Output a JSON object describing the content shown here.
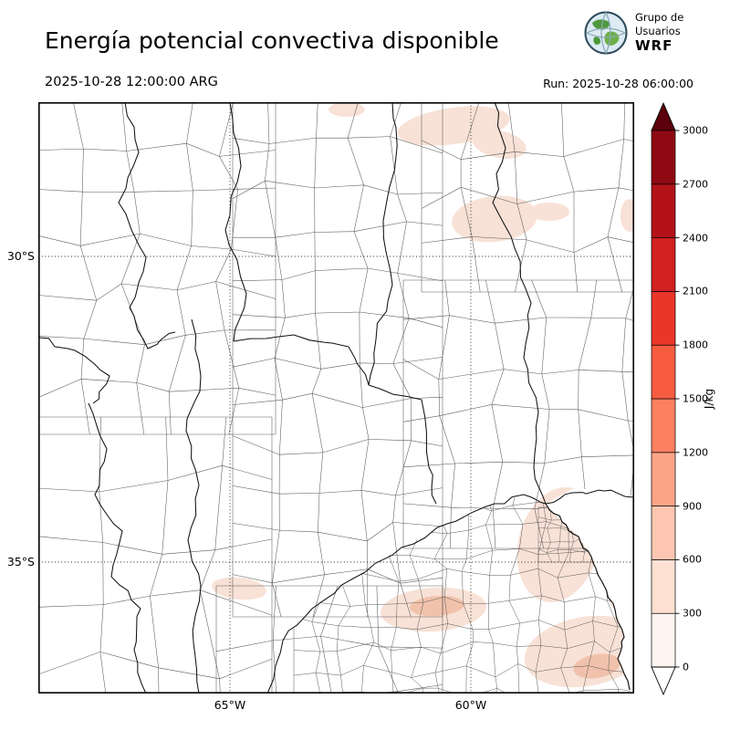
{
  "header": {
    "title": "Energía potencial convectiva disponible",
    "valid_time": "2025-10-28 12:00:00 ARG",
    "run_label": "Run: 2025-10-28 06:00:00"
  },
  "logo": {
    "line1": "Grupo de",
    "line2": "Usuarios",
    "line3": "WRF"
  },
  "map": {
    "lat_labels": [
      {
        "label": "30°S"
      },
      {
        "label": "35°S"
      }
    ],
    "lon_labels": [
      {
        "label": "65°W"
      },
      {
        "label": "60°W"
      }
    ],
    "patch_color": "#f8e1d6",
    "patch_core_color": "#f1c2ab",
    "department_color": "#5a5a5a",
    "boundary_color": "#111111",
    "grid_color": "#222222",
    "frame_color": "#000000"
  },
  "colorbar": {
    "unit": "J/kg",
    "tick_values": [
      "0",
      "300",
      "600",
      "900",
      "1200",
      "1500",
      "1800",
      "2100",
      "2400",
      "2700",
      "3000"
    ],
    "segment_colors": [
      "#fff5f0",
      "#fee1d3",
      "#fdc6b0",
      "#fca487",
      "#fc8161",
      "#f75c41",
      "#ea362a",
      "#d32020",
      "#b31218",
      "#8e0912"
    ],
    "over_color": "#5b000c",
    "under_color": "#ffffff",
    "outline_color": "#000000"
  }
}
